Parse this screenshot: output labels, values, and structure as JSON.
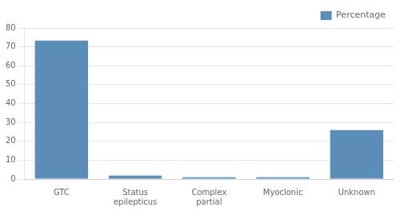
{
  "chart_data": {
    "type": "bar",
    "categories": [
      "GTC",
      "Status\nepilepticus",
      "Complex\npartial",
      "Myoclonic",
      "Unknown"
    ],
    "series": [
      {
        "name": "Percentage",
        "color": "#5b8db8",
        "values": [
          73.3,
          1.8,
          1.0,
          1.0,
          25.9
        ]
      }
    ],
    "ylim": [
      0,
      80
    ],
    "yticks": [
      0,
      10,
      20,
      30,
      40,
      50,
      60,
      70,
      80
    ],
    "grid": true,
    "legend": "upper right"
  }
}
